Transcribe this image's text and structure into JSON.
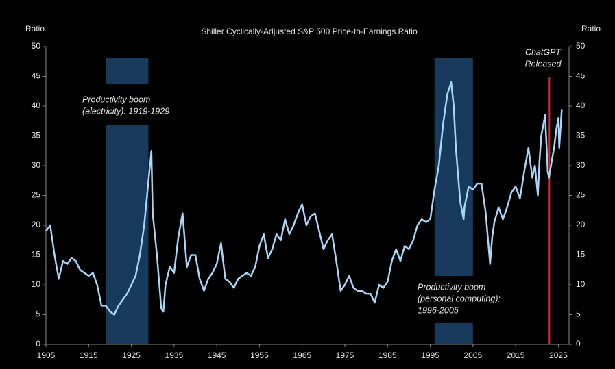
{
  "chart_data": {
    "type": "line",
    "title": "Shiller Cyclically-Adjusted S&P 500 Price-to-Earnings Ratio",
    "y_label": "Ratio",
    "y2_label": "Ratio",
    "xlim": [
      1905,
      2027.5
    ],
    "xticks": [
      1905,
      1915,
      1925,
      1935,
      1945,
      1955,
      1965,
      1975,
      1985,
      1995,
      2005,
      2015,
      2025
    ],
    "ylim": [
      0,
      50
    ],
    "yticks": [
      0,
      5,
      10,
      15,
      20,
      25,
      30,
      35,
      40,
      45,
      50
    ],
    "y2lim": [
      0,
      50
    ],
    "y2ticks": [
      0,
      5,
      10,
      15,
      20,
      25,
      30,
      35,
      40,
      45,
      50
    ],
    "shaded_regions": [
      {
        "start": 1919,
        "end": 1929,
        "color": "#173a5c",
        "label_lines": [
          "Productivity boom",
          "(electricity): 1919-1929"
        ]
      },
      {
        "start": 1996,
        "end": 2005,
        "color": "#173a5c",
        "label_lines": [
          "Productivity boom",
          "(personal computing):",
          "1996-2005"
        ]
      }
    ],
    "events": [
      {
        "x": 2022.9,
        "color": "#d9302c",
        "label_lines": [
          "ChatGPT",
          "Released"
        ]
      }
    ],
    "series": [
      {
        "color": "#a9d6f7",
        "x": [
          1905,
          1906,
          1907,
          1908,
          1909,
          1910,
          1911,
          1912,
          1913,
          1914,
          1915,
          1916,
          1917,
          1918,
          1919,
          1920,
          1921,
          1922,
          1923,
          1924,
          1925,
          1926,
          1927,
          1928,
          1929.7,
          1930,
          1931,
          1932,
          1932.5,
          1933,
          1934,
          1935,
          1936,
          1937,
          1938,
          1939,
          1940,
          1941,
          1942,
          1943,
          1944,
          1945,
          1946,
          1947,
          1948,
          1949,
          1950,
          1951,
          1952,
          1953,
          1954,
          1955,
          1956,
          1957,
          1958,
          1959,
          1960,
          1961,
          1962,
          1963,
          1964,
          1965,
          1966,
          1967,
          1968,
          1969,
          1970,
          1971,
          1972,
          1973,
          1974,
          1975,
          1976,
          1977,
          1978,
          1979,
          1980,
          1981,
          1982,
          1983,
          1984,
          1985,
          1986,
          1987,
          1988,
          1989,
          1990,
          1991,
          1992,
          1993,
          1994,
          1995,
          1996,
          1997,
          1998,
          1999,
          1999.9,
          2000.5,
          2001,
          2002,
          2002.8,
          2003,
          2004,
          2005,
          2006,
          2007,
          2008,
          2009,
          2009.5,
          2010,
          2011,
          2012,
          2013,
          2014,
          2015,
          2016,
          2017,
          2018,
          2018.9,
          2019.5,
          2020.2,
          2020.6,
          2021,
          2021.9,
          2022.5,
          2022.8,
          2023.5,
          2024,
          2024.5,
          2025,
          2025.2,
          2025.8
        ],
        "values": [
          19,
          20,
          15,
          11,
          14,
          13.5,
          14.5,
          14,
          12.5,
          12,
          11.5,
          12,
          10,
          6.5,
          6.5,
          5.5,
          5,
          6.5,
          7.5,
          8.5,
          10,
          11.5,
          15,
          20,
          32.5,
          22,
          15,
          6,
          5.5,
          10,
          13,
          12,
          18,
          22,
          13,
          15,
          15,
          11,
          9,
          11,
          12,
          13.5,
          17,
          11,
          10.5,
          9.5,
          11,
          11.5,
          12,
          11.5,
          13,
          16.5,
          18.5,
          14.5,
          16,
          18.5,
          17.5,
          21,
          18.5,
          20,
          22,
          23.5,
          20,
          21.5,
          22,
          19,
          16,
          17.5,
          18.5,
          14,
          9,
          10,
          11.5,
          9.5,
          9,
          9,
          8.5,
          8.5,
          7,
          10,
          9.5,
          10.5,
          14,
          16,
          14,
          16.5,
          16,
          17.5,
          20,
          21,
          20.5,
          21,
          26,
          30,
          37,
          42,
          44,
          40,
          33,
          24,
          21,
          23,
          26.5,
          26,
          27,
          27,
          22,
          13.5,
          18,
          20.5,
          23,
          21,
          23,
          25.5,
          26.5,
          24.5,
          29,
          33,
          28,
          30,
          25,
          31,
          35,
          38.5,
          29,
          28,
          31,
          33,
          36,
          38,
          33,
          39.5
        ]
      }
    ]
  }
}
